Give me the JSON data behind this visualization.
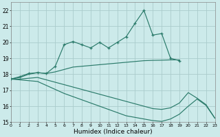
{
  "background_color": "#cceaea",
  "grid_color": "#aacccc",
  "line_color": "#2a7a6a",
  "xlabel": "Humidex (Indice chaleur)",
  "xlim": [
    0,
    23
  ],
  "ylim": [
    15,
    22.5
  ],
  "yticks": [
    15,
    16,
    17,
    18,
    19,
    20,
    21,
    22
  ],
  "xtick_labels": [
    "0",
    "1",
    "2",
    "3",
    "4",
    "5",
    "6",
    "7",
    "8",
    "9",
    "10",
    "11",
    "12",
    "13",
    "14",
    "15",
    "16",
    "17",
    "18",
    "19",
    "20",
    "21",
    "22",
    "23"
  ],
  "lines": [
    {
      "x": [
        0,
        1,
        2,
        3,
        4,
        5,
        6,
        7,
        8,
        9,
        10,
        11,
        12,
        13,
        14,
        15,
        16,
        17,
        18,
        19
      ],
      "y": [
        17.7,
        17.85,
        18.05,
        18.1,
        18.05,
        18.5,
        19.85,
        20.05,
        19.85,
        19.65,
        20.0,
        19.65,
        20.0,
        20.35,
        21.2,
        22.0,
        20.45,
        20.55,
        19.0,
        18.85
      ],
      "marker": true
    },
    {
      "x": [
        0,
        1,
        2,
        3,
        4,
        5,
        6,
        7,
        8,
        9,
        10,
        11,
        12,
        13,
        14,
        15,
        16,
        17,
        18,
        19
      ],
      "y": [
        17.7,
        17.8,
        18.0,
        18.1,
        18.05,
        18.15,
        18.3,
        18.45,
        18.5,
        18.55,
        18.6,
        18.65,
        18.7,
        18.75,
        18.8,
        18.85,
        18.87,
        18.88,
        18.9,
        18.9
      ],
      "marker": false
    },
    {
      "x": [
        0,
        1,
        2,
        3,
        4,
        5,
        6,
        7,
        8,
        9,
        10,
        11,
        12,
        13,
        14,
        15,
        16,
        17,
        18,
        19,
        20,
        21,
        22,
        23
      ],
      "y": [
        17.7,
        17.7,
        17.75,
        17.8,
        17.65,
        17.5,
        17.35,
        17.2,
        17.05,
        16.9,
        16.75,
        16.6,
        16.45,
        16.3,
        16.15,
        16.0,
        15.85,
        15.8,
        15.9,
        16.2,
        16.85,
        16.5,
        16.1,
        15.25
      ],
      "marker": false
    },
    {
      "x": [
        0,
        1,
        2,
        3,
        4,
        5,
        6,
        7,
        8,
        9,
        10,
        11,
        12,
        13,
        14,
        15,
        16,
        17,
        18,
        19,
        20,
        21,
        22,
        23
      ],
      "y": [
        17.7,
        17.65,
        17.6,
        17.55,
        17.3,
        17.05,
        16.8,
        16.6,
        16.4,
        16.2,
        16.0,
        15.8,
        15.6,
        15.4,
        15.3,
        15.2,
        15.1,
        15.05,
        15.2,
        15.5,
        16.0,
        16.45,
        16.05,
        15.25
      ],
      "marker": false
    }
  ]
}
